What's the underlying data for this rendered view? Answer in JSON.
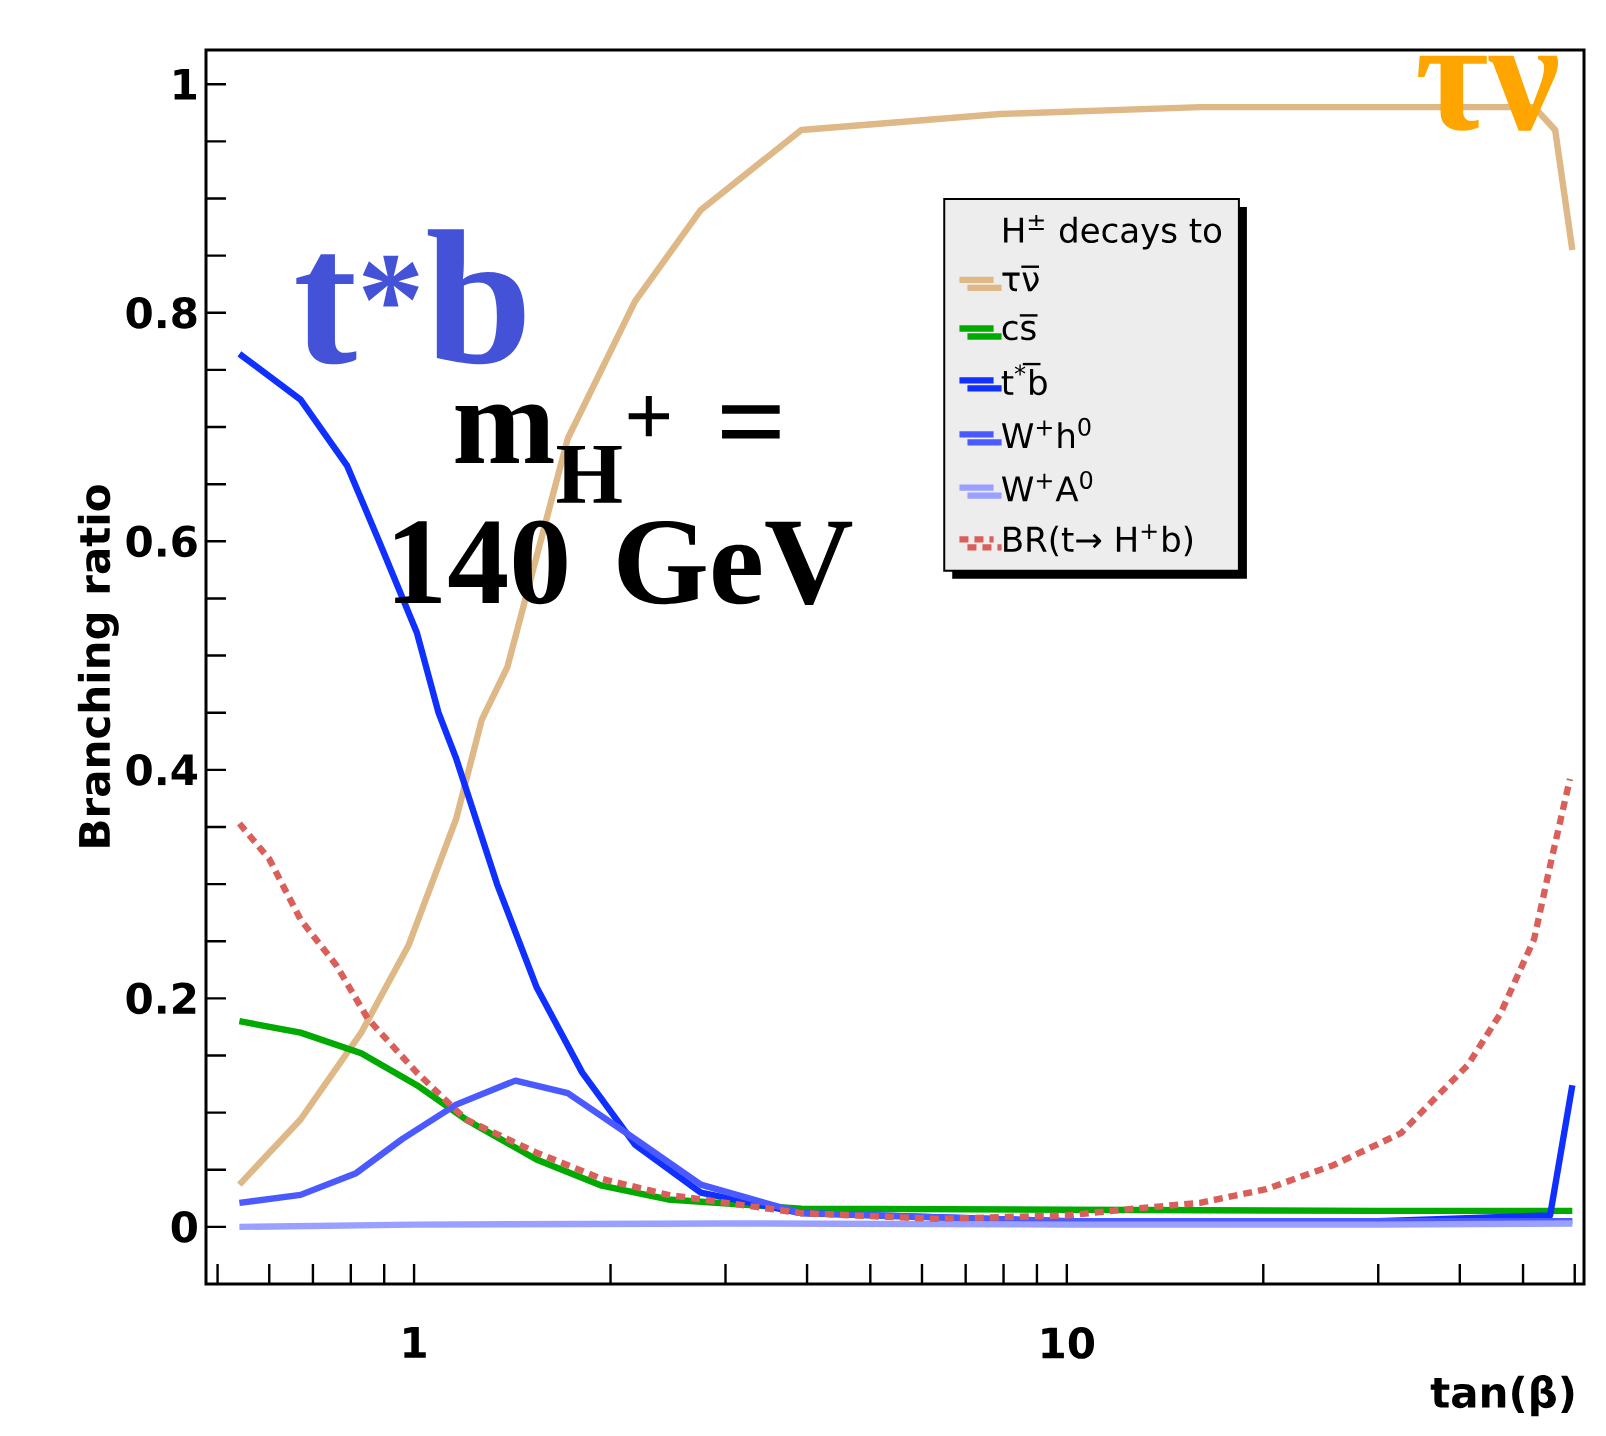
{
  "chart_data": {
    "type": "line",
    "xlabel": "tan(β)",
    "ylabel": "Branching ratio",
    "legend_title": "H$^{±}$ decays to",
    "log": "x",
    "xlim": [
      0.48,
      62
    ],
    "ylim": [
      -0.05,
      1.03
    ],
    "xticks": [
      {
        "value": 0.5,
        "label": null
      },
      {
        "value": 0.6,
        "label": null
      },
      {
        "value": 0.7,
        "label": null
      },
      {
        "value": 0.8,
        "label": null
      },
      {
        "value": 0.9,
        "label": null
      },
      1,
      {
        "value": 2,
        "label": null
      },
      {
        "value": 3,
        "label": null
      },
      {
        "value": 4,
        "label": null
      },
      {
        "value": 5,
        "label": null
      },
      {
        "value": 6,
        "label": null
      },
      {
        "value": 7,
        "label": null
      },
      {
        "value": 8,
        "label": null
      },
      {
        "value": 9,
        "label": null
      },
      10,
      {
        "value": 20,
        "label": null
      },
      {
        "value": 30,
        "label": null
      },
      {
        "value": 40,
        "label": null
      },
      {
        "value": 50,
        "label": null
      },
      {
        "value": 60,
        "label": null
      }
    ],
    "yticks": [
      0,
      {
        "value": 0.05,
        "label": null
      },
      {
        "value": 0.1,
        "label": null
      },
      {
        "value": 0.15,
        "label": null
      },
      0.2,
      {
        "value": 0.25,
        "label": null
      },
      {
        "value": 0.3,
        "label": null
      },
      {
        "value": 0.35,
        "label": null
      },
      0.4,
      {
        "value": 0.45,
        "label": null
      },
      {
        "value": 0.5,
        "label": null
      },
      {
        "value": 0.55,
        "label": null
      },
      0.6,
      {
        "value": 0.65,
        "label": null
      },
      {
        "value": 0.7,
        "label": null
      },
      {
        "value": 0.75,
        "label": null
      },
      0.8,
      {
        "value": 0.85,
        "label": null
      },
      {
        "value": 0.9,
        "label": null
      },
      {
        "value": 0.95,
        "label": null
      },
      1
    ],
    "grid": false,
    "legend": "right",
    "marker": "none",
    "line_style": "solid",
    "annotations": [
      "t$^{*}$b",
      "m$_{H}$$^{+}$ = 140 GeV",
      "τν"
    ],
    "series": [
      {
        "name": "τν̅",
        "color": "#deb887",
        "x": [
          0.54,
          0.67,
          0.83,
          0.98,
          1.16,
          1.27,
          1.39,
          1.72,
          2.18,
          2.75,
          3.92,
          7.9,
          16,
          30,
          52,
          56,
          59.5
        ],
        "values": [
          0.037,
          0.094,
          0.17,
          0.246,
          0.357,
          0.444,
          0.49,
          0.69,
          0.81,
          0.89,
          0.96,
          0.974,
          0.98,
          0.98,
          0.98,
          0.96,
          0.855
        ]
      },
      {
        "name": "cs̅",
        "color": "#00aa00",
        "x": [
          0.54,
          0.67,
          0.83,
          1.01,
          1.2,
          1.54,
          1.94,
          2.45,
          3.92,
          10,
          30,
          59.5
        ],
        "values": [
          0.18,
          0.17,
          0.152,
          0.124,
          0.094,
          0.059,
          0.036,
          0.024,
          0.016,
          0.015,
          0.014,
          0.014
        ]
      },
      {
        "name": "t$^{*}$b̅",
        "color": "#1030ff",
        "x": [
          0.54,
          0.67,
          0.79,
          0.89,
          1.01,
          1.09,
          1.16,
          1.34,
          1.54,
          1.81,
          2.18,
          2.75,
          3.92,
          10,
          30,
          55,
          59.5
        ],
        "values": [
          0.764,
          0.724,
          0.666,
          0.596,
          0.52,
          0.45,
          0.41,
          0.3,
          0.21,
          0.135,
          0.072,
          0.03,
          0.012,
          0.005,
          0.005,
          0.01,
          0.124
        ]
      },
      {
        "name": "W$^{+}$h$^{0}$",
        "color": "#4a5aff",
        "x": [
          0.54,
          0.67,
          0.815,
          0.96,
          1.16,
          1.43,
          1.72,
          2.18,
          2.75,
          3.92,
          10,
          30,
          59.5
        ],
        "values": [
          0.021,
          0.028,
          0.047,
          0.077,
          0.107,
          0.128,
          0.117,
          0.077,
          0.037,
          0.012,
          0.005,
          0.005,
          0.005
        ]
      },
      {
        "name": "W$^{+}$A$^{0}$",
        "color": "#9aa0ff",
        "x": [
          0.54,
          1,
          3,
          10,
          30,
          59.5
        ],
        "values": [
          0.0,
          0.002,
          0.003,
          0.002,
          0.002,
          0.003
        ]
      },
      {
        "name": "BR(t→ H$^{+}$b)",
        "color": "#d9605a",
        "line_style": "dotted",
        "x": [
          0.54,
          0.6,
          0.67,
          0.76,
          0.85,
          1.01,
          1.2,
          1.54,
          1.94,
          2.45,
          3.92,
          6.28,
          10,
          12.7,
          16,
          20.2,
          25.6,
          32.5,
          41.2,
          46.2,
          52,
          55.3,
          59
        ],
        "values": [
          0.353,
          0.322,
          0.269,
          0.229,
          0.182,
          0.135,
          0.094,
          0.065,
          0.042,
          0.028,
          0.012,
          0.007,
          0.01,
          0.016,
          0.021,
          0.033,
          0.054,
          0.082,
          0.142,
          0.187,
          0.252,
          0.322,
          0.392
        ]
      }
    ]
  }
}
